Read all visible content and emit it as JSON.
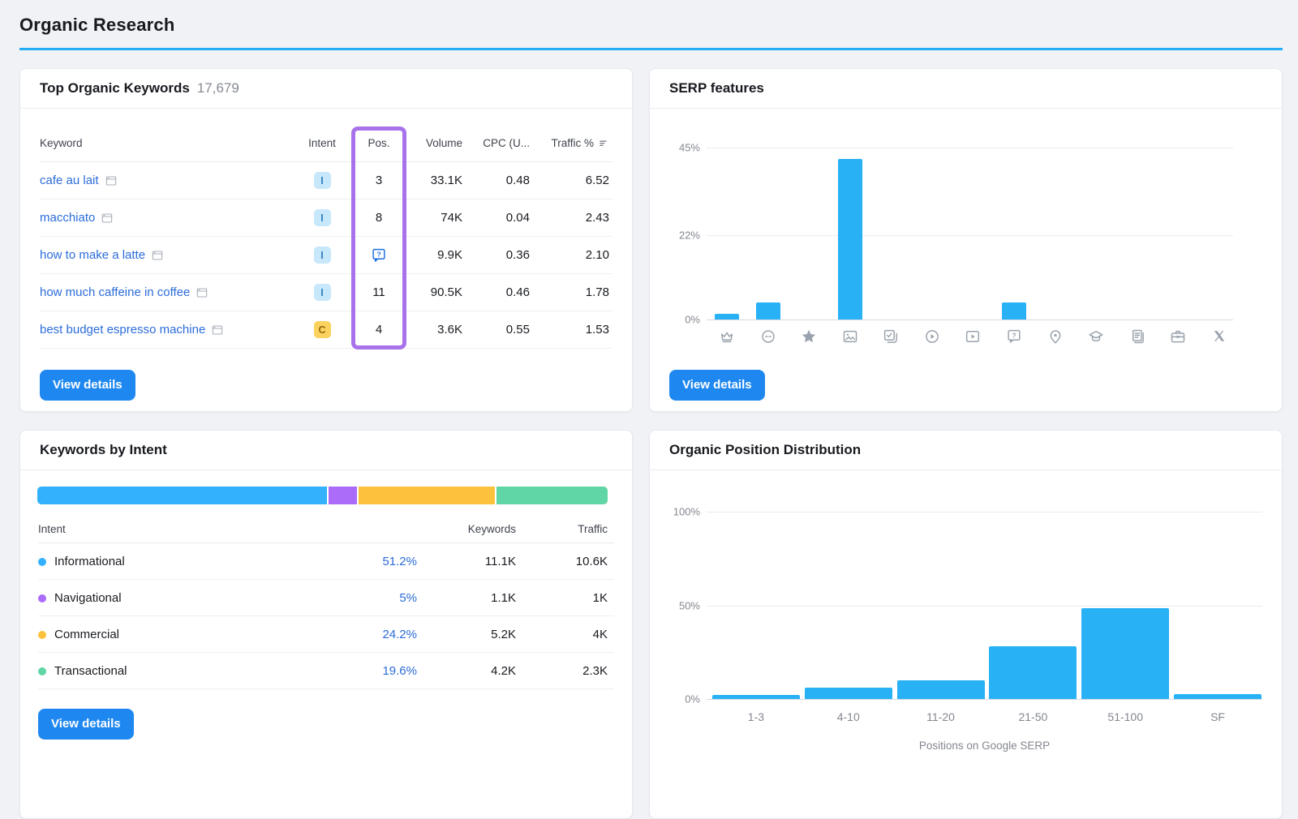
{
  "page": {
    "title": "Organic Research"
  },
  "colors": {
    "accent_rule": "#21aef5",
    "chart_bar_blue": "#29b1f5",
    "link_blue": "#2b6cd9",
    "button_blue": "#1f88f0",
    "highlight_purple": "#a873ea"
  },
  "top_keywords": {
    "title": "Top Organic Keywords",
    "count": "17,679",
    "columns": {
      "keyword": "Keyword",
      "intent": "Intent",
      "pos": "Pos.",
      "volume": "Volume",
      "cpc": "CPC (U...",
      "traffic": "Traffic %"
    },
    "rows": [
      {
        "keyword": "cafe au lait",
        "intent": "I",
        "pos": "3",
        "volume": "33.1K",
        "cpc": "0.48",
        "traffic": "6.52"
      },
      {
        "keyword": "macchiato",
        "intent": "I",
        "pos": "8",
        "volume": "74K",
        "cpc": "0.04",
        "traffic": "2.43"
      },
      {
        "keyword": "how to make a latte",
        "intent": "I",
        "pos": "question",
        "volume": "9.9K",
        "cpc": "0.36",
        "traffic": "2.10"
      },
      {
        "keyword": "how much caffeine in coffee",
        "intent": "I",
        "pos": "11",
        "volume": "90.5K",
        "cpc": "0.46",
        "traffic": "1.78"
      },
      {
        "keyword": "best budget espresso machine",
        "intent": "C",
        "pos": "4",
        "volume": "3.6K",
        "cpc": "0.55",
        "traffic": "1.53"
      }
    ],
    "view_details": "View details"
  },
  "serp_features": {
    "title": "SERP features",
    "view_details": "View details"
  },
  "keywords_by_intent": {
    "title": "Keywords by Intent",
    "columns": {
      "intent": "Intent",
      "keywords": "Keywords",
      "traffic": "Traffic"
    },
    "rows": [
      {
        "label": "Informational",
        "color": "#33b1fc",
        "percent": "51.2%",
        "keywords": "11.1K",
        "traffic": "10.6K"
      },
      {
        "label": "Navigational",
        "color": "#ab6cfa",
        "percent": "5%",
        "keywords": "1.1K",
        "traffic": "1K"
      },
      {
        "label": "Commercial",
        "color": "#fdc23d",
        "percent": "24.2%",
        "keywords": "5.2K",
        "traffic": "4K"
      },
      {
        "label": "Transactional",
        "color": "#5fd6a3",
        "percent": "19.6%",
        "keywords": "4.2K",
        "traffic": "2.3K"
      }
    ],
    "view_details": "View details"
  },
  "position_distribution": {
    "title": "Organic Position Distribution"
  },
  "chart_data": [
    {
      "id": "serp_features",
      "type": "bar",
      "title": "SERP features",
      "categories": [
        "crown",
        "link",
        "star",
        "image",
        "image-pack",
        "video",
        "featured-video",
        "question-bubble",
        "local-pack",
        "knowledge",
        "news",
        "jobs",
        "twitter-x"
      ],
      "values": [
        1.5,
        4.5,
        0,
        42,
        0,
        0,
        0,
        4.5,
        0,
        0,
        0,
        0,
        0
      ],
      "unit": "%",
      "ylim": [
        0,
        48
      ],
      "yticks": [
        "45%",
        "22%",
        "0%"
      ],
      "ytick_values": [
        45,
        22,
        0
      ],
      "xlabel": "",
      "ylabel": ""
    },
    {
      "id": "organic_position_distribution",
      "type": "bar",
      "title": "Organic Position Distribution",
      "categories": [
        "1-3",
        "4-10",
        "11-20",
        "21-50",
        "51-100",
        "SF"
      ],
      "values": [
        2,
        6,
        10,
        28,
        48.5,
        2.5
      ],
      "unit": "%",
      "ylim": [
        0,
        100
      ],
      "yticks": [
        "100%",
        "50%",
        "0%"
      ],
      "ytick_values": [
        100,
        50,
        0
      ],
      "xlabel": "Positions on Google SERP",
      "ylabel": ""
    },
    {
      "id": "keywords_by_intent",
      "type": "stacked-bar",
      "title": "Keywords by Intent",
      "categories": [
        "Informational",
        "Navigational",
        "Commercial",
        "Transactional"
      ],
      "values": [
        51.2,
        5,
        24.2,
        19.6
      ],
      "unit": "%"
    }
  ]
}
